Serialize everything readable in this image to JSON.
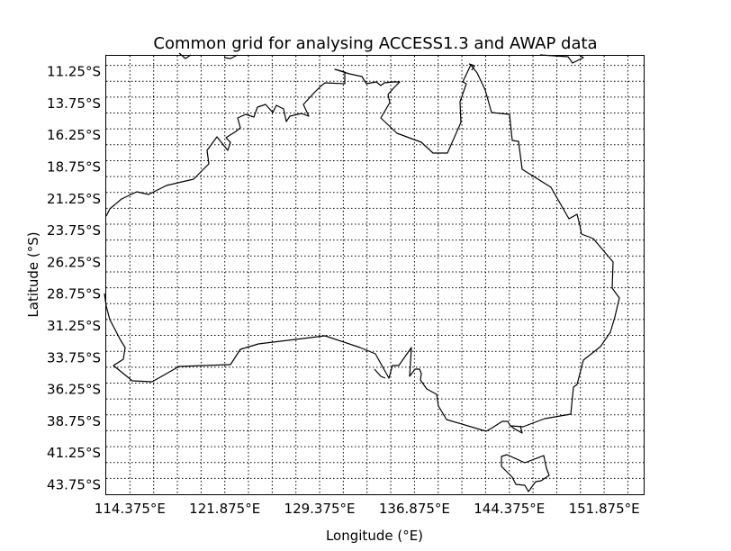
{
  "map": {
    "title": "Common grid for analysing ACCESS1.3 and AWAP data",
    "xlabel": "Longitude ($^\\circ$E)",
    "ylabel": "Latitude ($^\\circ$S)",
    "xlabel_display": "Longitude (°E)",
    "ylabel_display": "Latitude (°S)",
    "projection": "lat-lon",
    "lon_range": [
      112.5,
      155.0
    ],
    "lat_range": [
      -44.5,
      -10.0
    ],
    "grid_spacing_lon": 1.875,
    "grid_spacing_lat": 1.25,
    "grid": true,
    "x_ticks": [
      "114.375°E",
      "121.875°E",
      "129.375°E",
      "136.875°E",
      "144.375°E",
      "151.875°E"
    ],
    "y_ticks": [
      "11.25°S",
      "13.75°S",
      "16.25°S",
      "18.75°S",
      "21.25°S",
      "23.75°S",
      "26.25°S",
      "28.75°S",
      "31.25°S",
      "33.75°S",
      "36.25°S",
      "38.75°S",
      "41.25°S",
      "43.75°S"
    ],
    "features": [
      "Australia coastline",
      "Tasmania"
    ]
  }
}
